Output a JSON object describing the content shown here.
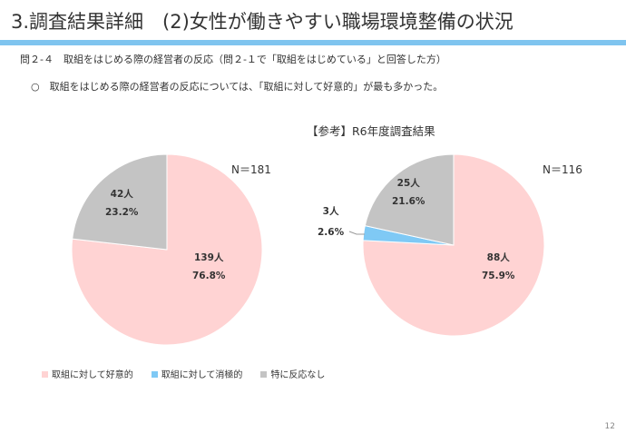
{
  "header": {
    "title": "3.調査結果詳細　(2)女性が働きやすい職場環境整備の状況"
  },
  "question": "問２-４　取組をはじめる際の経営者の反応（問２-１で「取組をはじめている」と回答した方）",
  "note": "○　取組をはじめる際の経営者の反応については、「取組に対して好意的」が最も多かった。",
  "reference_title": "【参考】R6年度調査結果",
  "page_number": "12",
  "colors": {
    "accent_bar": "#7fc4ef",
    "positive": "#ffd3d3",
    "negative": "#7fc9f5",
    "none": "#c4c4c4"
  },
  "chart_data": [
    {
      "type": "pie",
      "n_label": "N＝181",
      "start": "12 o'clock",
      "direction": "clockwise",
      "slices": [
        {
          "name": "取組に対して好意的",
          "count": "139人",
          "percent": "76.8%",
          "value": 76.8,
          "color": "#ffd3d3"
        },
        {
          "name": "特に反応なし",
          "count": "42人",
          "percent": "23.2%",
          "value": 23.2,
          "color": "#c4c4c4"
        }
      ]
    },
    {
      "type": "pie",
      "n_label": "N＝116",
      "start": "12 o'clock",
      "direction": "clockwise",
      "slices": [
        {
          "name": "取組に対して好意的",
          "count": "88人",
          "percent": "75.9%",
          "value": 75.9,
          "color": "#ffd3d3"
        },
        {
          "name": "取組に対して消極的",
          "count": "3人",
          "percent": "2.6%",
          "value": 2.6,
          "color": "#7fc9f5"
        },
        {
          "name": "特に反応なし",
          "count": "25人",
          "percent": "21.6%",
          "value": 21.6,
          "color": "#c4c4c4"
        }
      ]
    }
  ],
  "legend": [
    {
      "label": "取組に対して好意的",
      "color": "#ffd3d3"
    },
    {
      "label": "取組に対して消極的",
      "color": "#7fc9f5"
    },
    {
      "label": "特に反応なし",
      "color": "#c4c4c4"
    }
  ]
}
